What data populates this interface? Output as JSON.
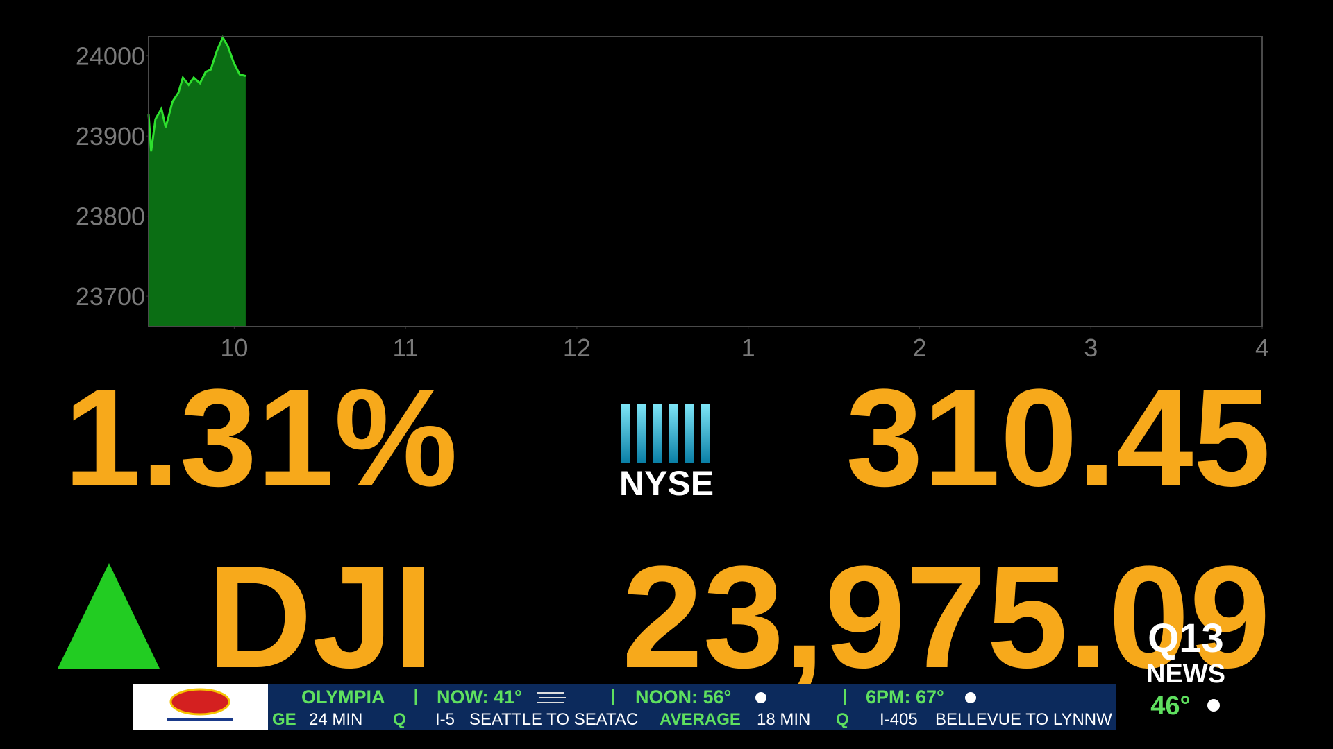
{
  "chart_data": {
    "type": "line",
    "x": [
      9.5,
      9.515,
      9.54,
      9.575,
      9.6,
      9.64,
      9.674,
      9.7,
      9.734,
      9.764,
      9.8,
      9.833,
      9.863,
      9.898,
      9.933,
      9.963,
      9.998,
      10.032,
      10.067
    ],
    "values": [
      23927,
      23881,
      23921,
      23934,
      23911,
      23943,
      23954,
      23973,
      23964,
      23973,
      23966,
      23980,
      23983,
      24006,
      24023,
      24012,
      23991,
      23977,
      23975
    ],
    "color": "#2ee02e",
    "fill_color": "#0b6e14",
    "xlim": [
      9.5,
      16
    ],
    "xticks": [
      10,
      11,
      12,
      {
        "value": 13,
        "label": "1"
      },
      {
        "value": 14,
        "label": "2"
      },
      {
        "value": 15,
        "label": "3"
      },
      {
        "value": 16,
        "label": "4"
      }
    ],
    "ylim": [
      23662,
      24024
    ],
    "yticks": [
      23700,
      23800,
      23900,
      24000
    ]
  },
  "quote": {
    "change_percent": "1.31%",
    "exchange": "NYSE",
    "change_points": "310.45",
    "symbol": "DJI",
    "price": "23,975.09"
  },
  "ticker": {
    "city": "OLYMPIA",
    "now": "NOW: 41°",
    "noon": "NOON: 56°",
    "evening": "6PM: 67°",
    "traffic": [
      "GE",
      "24 MIN",
      "Q",
      "I-5",
      "SEATTLE TO SEATAC",
      "AVERAGE",
      "18 MIN",
      "Q",
      "I-405",
      "BELLEVUE TO LYNNW"
    ]
  },
  "station": {
    "name": "Q13",
    "sub": "NEWS",
    "temperature": "46°"
  }
}
